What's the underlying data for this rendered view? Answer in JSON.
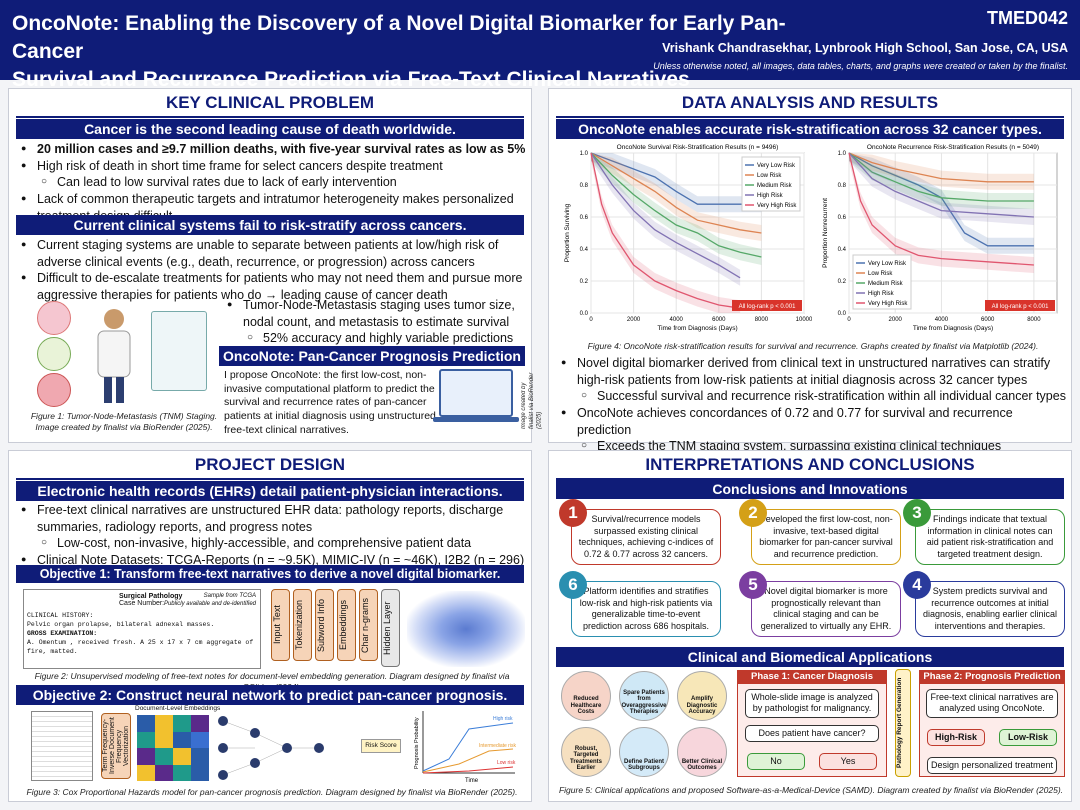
{
  "header": {
    "title_line1": "OncoNote: Enabling the Discovery of a Novel Digital Biomarker for Early Pan-Cancer",
    "title_line2": "Survival and Recurrence Prediction via Free-Text Clinical Narratives",
    "code": "TMED042",
    "author": "Vrishank Chandrasekhar, Lynbrook High School, San Jose, CA, USA",
    "note": "Unless otherwise noted, all images, data tables, charts, and graphs were created or taken by the finalist."
  },
  "problem": {
    "heading": "KEY CLINICAL PROBLEM",
    "bar1": "Cancer is the second leading cause of death worldwide.",
    "b1": "20 million cases and ≥9.7 million deaths, with five-year survival rates as low as 5%",
    "b2": "High risk of death in short time frame for select cancers despite treatment",
    "s1": "Can lead to low survival rates due to lack of early intervention",
    "b3": "Lack of common therapeutic targets and intratumor heterogeneity makes personalized treatment design difficult",
    "bar2": "Current clinical systems fail to risk-stratify across cancers.",
    "b4": "Current staging systems are unable to separate between patients at low/high risk of adverse clinical events (e.g., death, recurrence, or progression) across cancers",
    "b5": "Difficult to de-escalate treatments for patients who may not need them and pursue more aggressive therapies for patients who do → leading cause of cancer death",
    "b6": "Tumor-Node-Metastasis staging uses tumor size, nodal count, and metastasis to estimate survival",
    "s2": "52% accuracy and highly variable predictions",
    "fig1": "Figure 1: Tumor-Node-Metastasis (TNM) Staging. Image created by finalist via BioRender (2025).",
    "bar3": "OncoNote: Pan-Cancer Prognosis Prediction",
    "propose": "I propose OncoNote: the first low-cost, non-invasive computational platform to predict the survival and recurrence rates of pan-cancer patients at initial diagnosis using unstructured free-text clinical narratives.",
    "vcap": "Image created by finalist via BioRender (2025)"
  },
  "results": {
    "heading": "DATA ANALYSIS AND RESULTS",
    "bar": "OncoNote enables accurate risk-stratification across 32 cancer types.",
    "fig4": "Figure 4: OncoNote risk-stratification results for survival and recurrence. Graphs created by finalist via Matplotlib (2024).",
    "b1": "Novel digital biomarker derived from clinical text in unstructured narratives can stratify high-risk patients from low-risk patients at initial diagnosis across 32 cancer types",
    "s1": "Successful survival and recurrence risk-stratification within all individual cancer types",
    "b2": "OncoNote achieves concordances of 0.72 and 0.77 for survival and recurrence prediction",
    "s2": "Exceeds the TNM staging system, surpassing existing clinical techniques"
  },
  "chart_data": [
    {
      "type": "line",
      "title": "OncoNote Survival Risk-Stratification Results (n = 9496)",
      "xlabel": "Time from Diagnosis (Days)",
      "ylabel": "Proportion Surviving",
      "xlim": [
        0,
        10000
      ],
      "ylim": [
        0,
        1
      ],
      "xticks": [
        0,
        2000,
        4000,
        6000,
        8000,
        10000
      ],
      "yticks": [
        0.0,
        0.2,
        0.4,
        0.6,
        0.8,
        1.0
      ],
      "legend": "top-right",
      "annotation": "All log-rank p < 0.001",
      "series": [
        {
          "name": "Very Low Risk",
          "color": "#4c72b0",
          "x": [
            0,
            1000,
            2000,
            3000,
            4000,
            5000,
            6000,
            8000
          ],
          "y": [
            1.0,
            0.95,
            0.9,
            0.85,
            0.76,
            0.68,
            0.68,
            0.68
          ]
        },
        {
          "name": "Low Risk",
          "color": "#dd8452",
          "x": [
            0,
            1000,
            2000,
            3000,
            4000,
            5000,
            6000,
            7000,
            8000
          ],
          "y": [
            1.0,
            0.92,
            0.84,
            0.76,
            0.66,
            0.58,
            0.55,
            0.52,
            0.5
          ]
        },
        {
          "name": "Medium Risk",
          "color": "#55a868",
          "x": [
            0,
            1000,
            2000,
            3000,
            4000,
            5000,
            6000,
            7000,
            8000
          ],
          "y": [
            1.0,
            0.86,
            0.74,
            0.64,
            0.55,
            0.5,
            0.42,
            0.38,
            0.35
          ]
        },
        {
          "name": "High Risk",
          "color": "#8172b3",
          "x": [
            0,
            1000,
            2000,
            3000,
            4000,
            5000,
            6000,
            7000
          ],
          "y": [
            1.0,
            0.8,
            0.64,
            0.52,
            0.44,
            0.37,
            0.3,
            0.22
          ]
        },
        {
          "name": "Very High Risk",
          "color": "#e0566f",
          "x": [
            0,
            500,
            1000,
            2000,
            3000,
            4000,
            5000,
            6000,
            7000
          ],
          "y": [
            1.0,
            0.68,
            0.5,
            0.3,
            0.2,
            0.14,
            0.09,
            0.05,
            0.03
          ]
        }
      ]
    },
    {
      "type": "line",
      "title": "OncoNote Recurrence Risk-Stratification Results (n = 5049)",
      "xlabel": "Time from Diagnosis (Days)",
      "ylabel": "Proportion Nonrecurrent",
      "xlim": [
        0,
        9000
      ],
      "ylim": [
        0,
        1
      ],
      "xticks": [
        0,
        2000,
        4000,
        6000,
        8000
      ],
      "yticks": [
        0.0,
        0.2,
        0.4,
        0.6,
        0.8,
        1.0
      ],
      "legend": "bottom-left",
      "annotation": "All log-rank p < 0.001",
      "series": [
        {
          "name": "Very Low Risk",
          "color": "#4c72b0",
          "x": [
            0,
            1000,
            2000,
            3000,
            4000,
            5000,
            6000,
            8000
          ],
          "y": [
            1.0,
            0.92,
            0.86,
            0.8,
            0.72,
            0.5,
            0.42,
            0.42
          ]
        },
        {
          "name": "Low Risk",
          "color": "#dd8452",
          "x": [
            0,
            1000,
            2000,
            3000,
            4000,
            6000,
            8000
          ],
          "y": [
            1.0,
            0.94,
            0.9,
            0.87,
            0.84,
            0.82,
            0.82
          ]
        },
        {
          "name": "Medium Risk",
          "color": "#55a868",
          "x": [
            0,
            1000,
            2000,
            3000,
            4000,
            6000,
            8000
          ],
          "y": [
            1.0,
            0.88,
            0.82,
            0.76,
            0.72,
            0.7,
            0.7
          ]
        },
        {
          "name": "High Risk",
          "color": "#8172b3",
          "x": [
            0,
            1000,
            2000,
            3000,
            4000,
            6000,
            8000
          ],
          "y": [
            1.0,
            0.84,
            0.76,
            0.7,
            0.64,
            0.62,
            0.6
          ]
        },
        {
          "name": "Very High Risk",
          "color": "#e0566f",
          "x": [
            0,
            500,
            1000,
            2000,
            3000,
            4000,
            6000,
            8000
          ],
          "y": [
            1.0,
            0.7,
            0.55,
            0.42,
            0.36,
            0.34,
            0.32,
            0.3
          ]
        }
      ]
    }
  ],
  "design": {
    "heading": "PROJECT DESIGN",
    "bar1": "Electronic health records (EHRs) detail patient-physician interactions.",
    "b1": "Free-text clinical narratives are unstructured EHR data: pathology reports, discharge summaries, radiology reports, and progress notes",
    "s1": "Low-cost, non-invasive, highly-accessible, and comprehensive patient data",
    "b2": "Clinical Note Datasets: TCGA-Reports (n = ~9.5K), MIMIC-IV (n = ~46K), I2B2 (n = 296)",
    "bar2": "Objective 1: Transform free-text narratives to derive a novel digital biomarker.",
    "report_title": "Surgical Pathology",
    "report_case": "Case Number:",
    "report_src": "Sample from TCGA",
    "report_src2": "Publicly available and de-identified",
    "report_l1": "CLINICAL HISTORY:",
    "report_l2": "Pelvic organ prolapse, bilateral adnexal masses.",
    "report_l3": "GROSS EXAMINATION:",
    "report_l4": "A. Omentum , received fresh. A 25 x 17 x 7 cm aggregate of",
    "report_l5": "fire, matted.",
    "steps": [
      "Input Text",
      "Tokenization",
      "Subword Info",
      "Embeddings",
      "Char n-grams",
      "Hidden Layer"
    ],
    "fig2": "Figure 2: Unsupervised modeling of free-text notes for document-level embedding generation. Diagram designed by finalist via GSlides (2024).",
    "bar3": "Objective 2: Construct neural network to predict pan-cancer prognosis.",
    "tfidf": "Term Frequency-Inverse Document Frequency Vectorization",
    "emb": "Document-Level Embeddings",
    "risk": "Risk Score",
    "ylab": "Prognosis Probability",
    "xlab": "Time",
    "hr": "High risk",
    "ir": "Intermediate risk",
    "lr": "Low risk",
    "fig3": "Figure 3: Cox Proportional Hazards model for pan-cancer prognosis prediction. Diagram designed by finalist via BioRender (2025)."
  },
  "conc": {
    "heading": "INTERPRETATIONS AND CONCLUSIONS",
    "bar1": "Conclusions and Innovations",
    "items": [
      {
        "n": "1",
        "t": "Survival/recurrence models surpassed existing clinical techniques, achieving c-indices of 0.72 & 0.77 across 32 cancers.",
        "c": "#c0392b"
      },
      {
        "n": "2",
        "t": "Developed the first low-cost, non-invasive, text-based digital biomarker for pan-cancer survival and recurrence prediction.",
        "c": "#d4a017"
      },
      {
        "n": "3",
        "t": "Findings indicate that textual information in clinical notes can aid patient risk-stratification and targeted treatment design.",
        "c": "#3a9a3a"
      },
      {
        "n": "4",
        "t": "System predicts survival and recurrence outcomes at initial diagnosis, enabling earlier clinical interventions and therapies.",
        "c": "#2a3b9c"
      },
      {
        "n": "5",
        "t": "Novel digital biomarker is more prognostically relevant than clinical staging and can be generalized to virtually any EHR.",
        "c": "#7b3ea0"
      },
      {
        "n": "6",
        "t": "Platform identifies and stratifies low-risk and high-risk patients via generalizable time-to-event prediction across 686 hospitals.",
        "c": "#2a8fb0"
      }
    ],
    "bar2": "Clinical and Biomedical Applications",
    "apps": [
      "Reduced Healthcare Costs",
      "Spare Patients from Overaggressive Therapies",
      "Amplify Diagnostic Accuracy",
      "Robust, Targeted Treatments Earlier",
      "Define Patient Subgroups",
      "Better Clinical Outcomes"
    ],
    "phase1": "Phase 1: Cancer Diagnosis",
    "p1a": "Whole-slide image is analyzed by pathologist for malignancy.",
    "p1b": "Does patient have cancer?",
    "no": "No",
    "yes": "Yes",
    "prg": "Pathology Report Generation",
    "phase2": "Phase 2: Prognosis Prediction",
    "p2a": "Free-text clinical narratives are analyzed using OncoNote.",
    "hr": "High-Risk",
    "lr": "Low-Risk",
    "p2b": "Design personalized treatment",
    "fig5": "Figure 5: Clinical applications and proposed Software-as-a-Medical-Device (SAMD). Diagram created by finalist via BioRender (2025)."
  }
}
